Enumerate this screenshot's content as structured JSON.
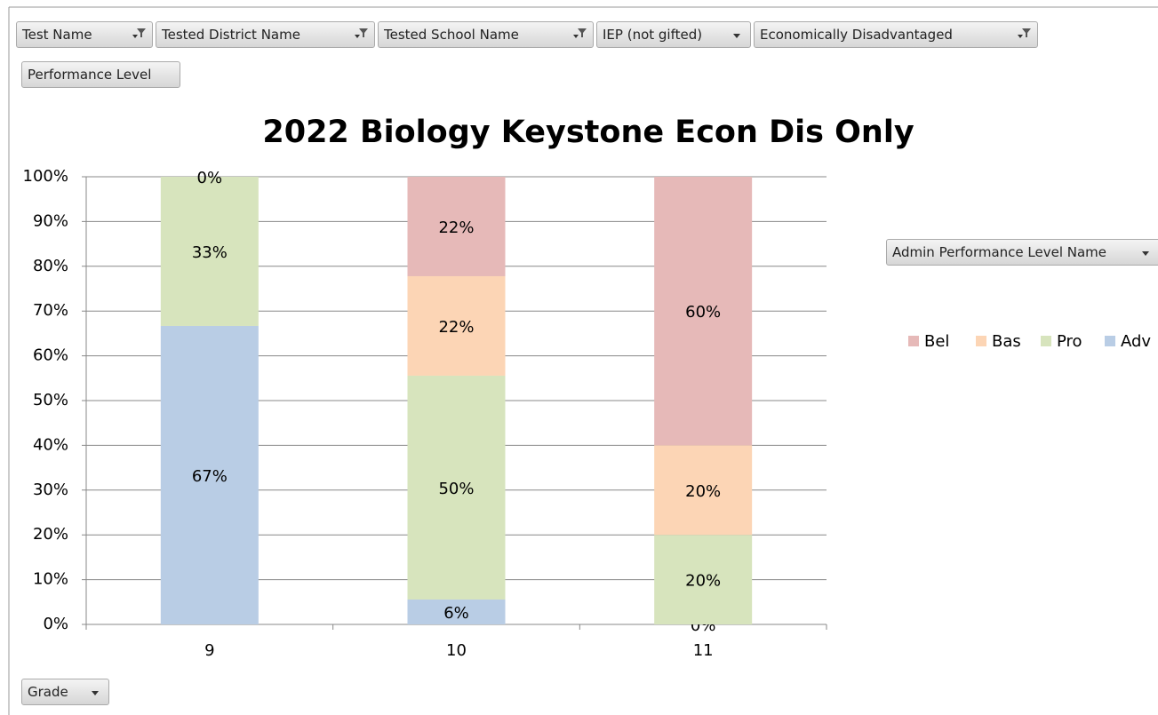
{
  "chart_data": {
    "type": "bar",
    "stacked": true,
    "title": "2022 Biology Keystone Econ Dis Only",
    "filter_fields": [
      "Test Name",
      "Tested District Name",
      "Tested School Name",
      "IEP (not gifted)",
      "Economically Disadvantaged"
    ],
    "value_field": "Performance Level",
    "legend_field": "Admin Performance Level Name",
    "axis_field": "Grade",
    "categories": [
      "9",
      "10",
      "11"
    ],
    "series": [
      {
        "name": "Bel",
        "color": "#e6b9b8",
        "values": [
          0,
          22.22,
          60
        ],
        "value_labels": [
          "0%",
          "22%",
          "60%"
        ]
      },
      {
        "name": "Bas",
        "color": "#fcd5b5",
        "values": [
          null,
          22.22,
          20
        ],
        "value_labels": [
          null,
          "22%",
          "20%"
        ]
      },
      {
        "name": "Pro",
        "color": "#d7e4bd",
        "values": [
          33.33,
          50,
          20
        ],
        "value_labels": [
          "33%",
          "50%",
          "20%"
        ]
      },
      {
        "name": "Adv",
        "color": "#b9cde5",
        "values": [
          66.67,
          5.56,
          0
        ],
        "value_labels": [
          "67%",
          "6%",
          "0%"
        ]
      }
    ],
    "ylim": [
      0,
      100
    ],
    "yticks": [
      {
        "value": 0,
        "label": "0%"
      },
      {
        "value": 10,
        "label": "10%"
      },
      {
        "value": 20,
        "label": "20%"
      },
      {
        "value": 30,
        "label": "30%"
      },
      {
        "value": 40,
        "label": "40%"
      },
      {
        "value": 50,
        "label": "50%"
      },
      {
        "value": 60,
        "label": "60%"
      },
      {
        "value": 70,
        "label": "70%"
      },
      {
        "value": 80,
        "label": "80%"
      },
      {
        "value": 90,
        "label": "90%"
      },
      {
        "value": 100,
        "label": "100%"
      }
    ],
    "grid": true
  }
}
